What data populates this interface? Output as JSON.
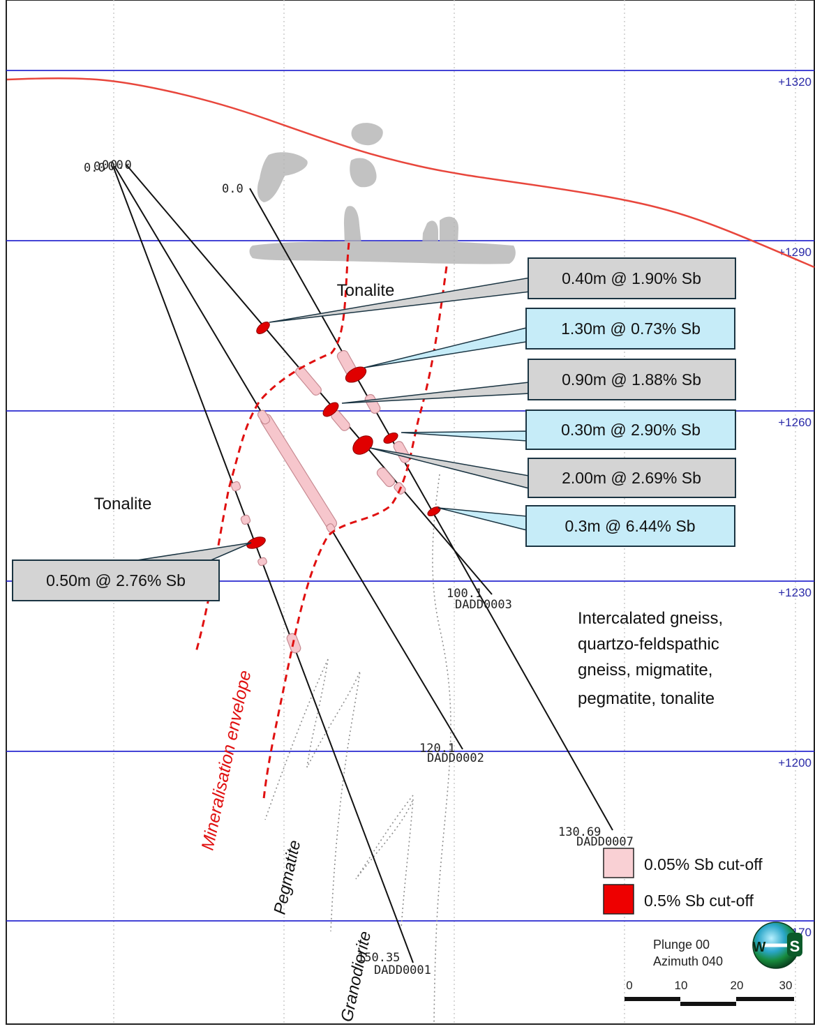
{
  "elevations": [
    "+1320",
    "+1290",
    "+1260",
    "+1230",
    "+1200",
    "+1170"
  ],
  "holes": [
    {
      "id": "DADD0001",
      "depth": "150.35",
      "collar": "0.0"
    },
    {
      "id": "DADD0002",
      "depth": "120.1",
      "collar": "0.0"
    },
    {
      "id": "DADD0003",
      "depth": "100.1",
      "collar": "0.0"
    },
    {
      "id": "DADD0007",
      "depth": "130.69",
      "collar": "0.0"
    }
  ],
  "collar_cluster_label": "0.0",
  "intercepts": [
    {
      "text": "0.40m @ 1.90% Sb",
      "style": "grey"
    },
    {
      "text": "1.30m @ 0.73% Sb",
      "style": "blue"
    },
    {
      "text": "0.90m @ 1.88% Sb",
      "style": "grey"
    },
    {
      "text": "0.30m @ 2.90% Sb",
      "style": "blue"
    },
    {
      "text": "2.00m @ 2.69% Sb",
      "style": "grey"
    },
    {
      "text": "0.3m @ 6.44% Sb",
      "style": "blue"
    },
    {
      "text": "0.50m @ 2.76% Sb",
      "style": "grey"
    }
  ],
  "regions": {
    "tonalite_upper": "Tonalite",
    "tonalite_left": "Tonalite",
    "intercalated": [
      "Intercalated gneiss,",
      "quartzo-feldspathic",
      "gneiss, migmatite,",
      "pegmatite, tonalite"
    ],
    "envelope": "Mineralisation envelope",
    "pegmatite": "Pegmatite",
    "granodiorite": "Granodiorite"
  },
  "legend": [
    {
      "label": "0.05% Sb cut-off",
      "color": "#f9d0d4"
    },
    {
      "label": "0.5% Sb cut-off",
      "color": "#ee0000"
    }
  ],
  "view": {
    "plunge": "Plunge 00",
    "azimuth": "Azimuth 040"
  },
  "scale_bar": [
    "0",
    "10",
    "20",
    "30"
  ],
  "compass": {
    "left": "W",
    "right": "S"
  },
  "colors": {
    "grid_blue": "#2a2ad0",
    "topography": "#e8463c",
    "envelope": "#e01010",
    "callout_grey": "#d4d4d4",
    "callout_blue": "#c6ecf8"
  }
}
